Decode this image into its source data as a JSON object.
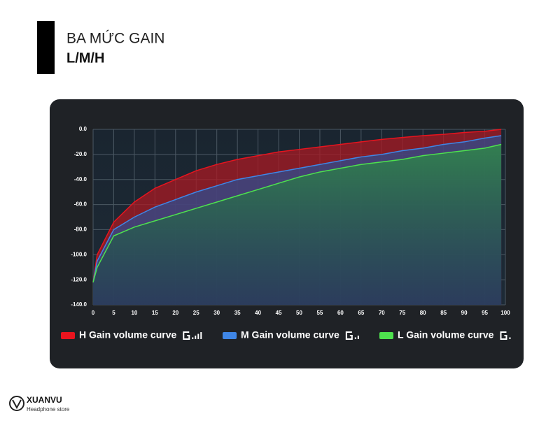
{
  "header": {
    "title": "BA MỨC GAIN",
    "subtitle": "L/M/H"
  },
  "chart_data": {
    "type": "line",
    "x": [
      0,
      1,
      5,
      10,
      15,
      20,
      25,
      30,
      35,
      40,
      45,
      50,
      55,
      60,
      65,
      70,
      75,
      80,
      85,
      90,
      95,
      99
    ],
    "series": [
      {
        "name": "H Gain volume curve",
        "color": "#e8141e",
        "values": [
          -122,
          -100,
          -74,
          -58,
          -47,
          -40,
          -33,
          -28,
          -24,
          -21,
          -18,
          -16,
          -14,
          -12,
          -10,
          -8,
          -6.5,
          -5,
          -4,
          -2.5,
          -1.5,
          0
        ]
      },
      {
        "name": "M Gain volume curve",
        "color": "#3f86e6",
        "values": [
          -122,
          -105,
          -80,
          -70,
          -62,
          -56,
          -50,
          -45,
          -40,
          -37,
          -34,
          -31,
          -28,
          -25,
          -22,
          -20,
          -17,
          -15,
          -12,
          -10,
          -7,
          -5
        ]
      },
      {
        "name": "L Gain volume curve",
        "color": "#4ee24e",
        "values": [
          -122,
          -110,
          -85,
          -78,
          -73,
          -68,
          -63,
          -58,
          -53,
          -48,
          -43,
          -38,
          -34,
          -31,
          -28,
          -26,
          -24,
          -21,
          -19,
          -17,
          -15,
          -12
        ]
      }
    ],
    "xlim": [
      0,
      100
    ],
    "ylim": [
      -140,
      0
    ],
    "xticks": [
      0,
      5,
      10,
      15,
      20,
      25,
      30,
      35,
      40,
      45,
      50,
      55,
      60,
      65,
      70,
      75,
      80,
      85,
      90,
      95,
      100
    ],
    "yticks": [
      {
        "value": 0,
        "label": "0.0"
      },
      {
        "value": -20,
        "label": "-20.0"
      },
      {
        "value": -40,
        "label": "-40.0"
      },
      {
        "value": -60,
        "label": "-60.0"
      },
      {
        "value": -80,
        "label": "-80.0"
      },
      {
        "value": -100,
        "label": "-100.0"
      },
      {
        "value": -120,
        "label": "-120.0"
      },
      {
        "value": -140,
        "label": "-140.0"
      }
    ],
    "grid": true
  },
  "brand": {
    "name": "XUANVU",
    "tagline": "Headphone store"
  }
}
